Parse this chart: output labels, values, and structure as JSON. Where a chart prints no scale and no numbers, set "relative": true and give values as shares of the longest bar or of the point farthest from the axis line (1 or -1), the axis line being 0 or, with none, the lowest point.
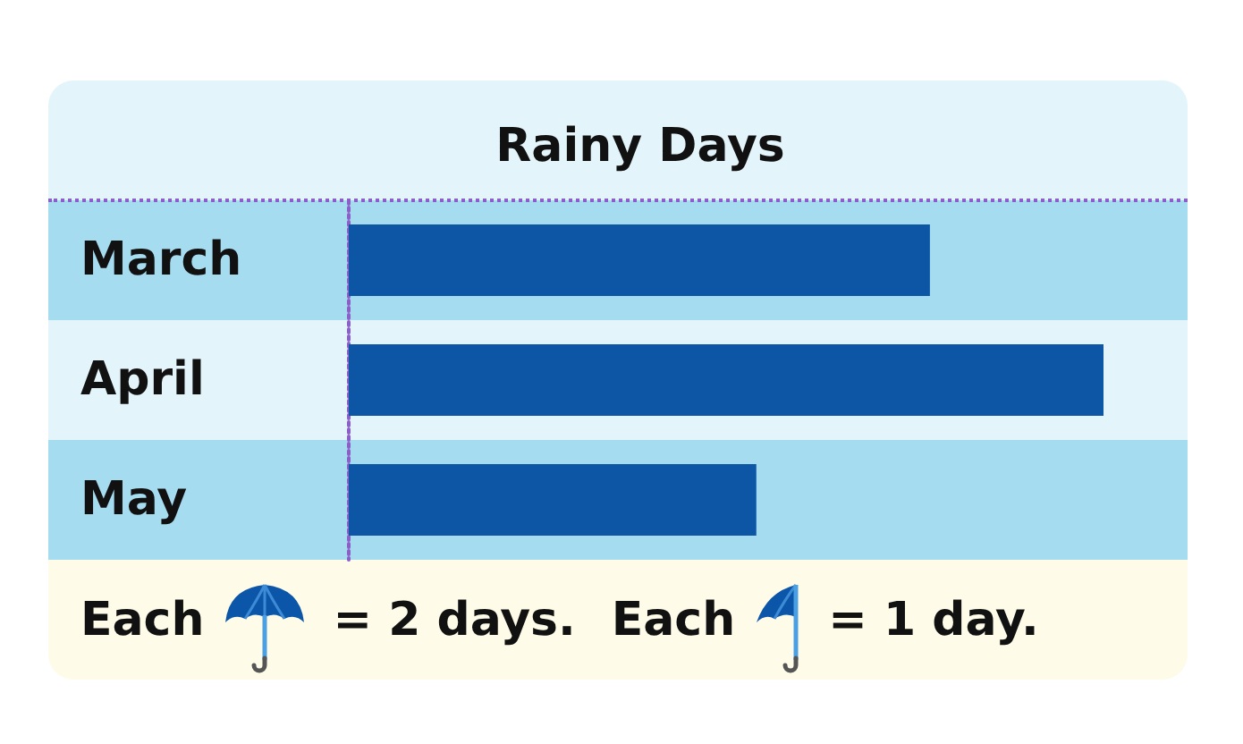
{
  "chart_data": {
    "type": "bar",
    "orientation": "horizontal",
    "relative": true,
    "title": "Rainy Days",
    "categories": [
      "March",
      "April",
      "May"
    ],
    "values": [
      0.77,
      1,
      0.54
    ],
    "color": "#0d56a6",
    "annotations": [
      "Each",
      "= 2 days.",
      "Each",
      "= 1 day."
    ]
  }
}
